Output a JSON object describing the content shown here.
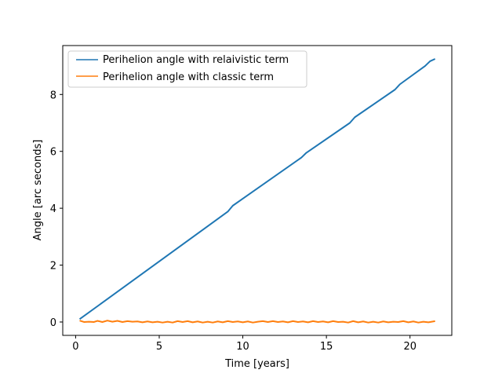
{
  "chart_data": {
    "type": "line",
    "title": "",
    "xlabel": "Time [years]",
    "ylabel": "Angle [arc seconds]",
    "xlim": [
      -0.77,
      22.5
    ],
    "ylim": [
      -0.47,
      9.72
    ],
    "xticks": [
      0,
      5,
      10,
      15,
      20
    ],
    "yticks": [
      0,
      2,
      4,
      6,
      8
    ],
    "grid": false,
    "legend_position": "upper-left",
    "series": [
      {
        "name": "Perihelion angle with relaivistic term",
        "color": "#1f77b4",
        "x": [
          0.24,
          9.1,
          9.4,
          13.5,
          13.8,
          16.4,
          16.7,
          19.1,
          19.4,
          20.9,
          21.2,
          21.5
        ],
        "y": [
          0.1,
          3.88,
          4.09,
          5.78,
          5.95,
          7.0,
          7.2,
          8.17,
          8.36,
          9.0,
          9.17,
          9.25
        ]
      },
      {
        "name": "Perihelion angle with classic term",
        "color": "#ff7f0e",
        "x": [
          0.24,
          0.5,
          0.8,
          1.1,
          1.3,
          1.6,
          1.9,
          2.2,
          2.5,
          2.8,
          3.1,
          3.4,
          3.7,
          4.0,
          4.3,
          4.6,
          4.9,
          5.2,
          5.5,
          5.8,
          6.1,
          6.4,
          6.7,
          7.0,
          7.3,
          7.6,
          7.9,
          8.2,
          8.5,
          8.8,
          9.1,
          9.4,
          9.7,
          10.0,
          10.3,
          10.6,
          10.9,
          11.2,
          11.5,
          11.8,
          12.1,
          12.4,
          12.7,
          13.0,
          13.3,
          13.6,
          13.9,
          14.2,
          14.5,
          14.8,
          15.1,
          15.4,
          15.7,
          16.0,
          16.3,
          16.6,
          16.9,
          17.2,
          17.5,
          17.8,
          18.1,
          18.4,
          18.7,
          19.0,
          19.3,
          19.6,
          19.9,
          20.2,
          20.5,
          20.8,
          21.1,
          21.5
        ],
        "y": [
          0.05,
          0.0,
          0.01,
          0.0,
          0.04,
          0.0,
          0.05,
          0.01,
          0.04,
          0.0,
          0.03,
          0.01,
          0.02,
          -0.01,
          0.02,
          -0.01,
          0.01,
          -0.02,
          0.01,
          -0.02,
          0.03,
          0.0,
          0.03,
          -0.01,
          0.02,
          -0.02,
          0.01,
          -0.02,
          0.02,
          -0.01,
          0.03,
          0.0,
          0.02,
          -0.01,
          0.02,
          -0.02,
          0.01,
          0.03,
          0.0,
          0.03,
          0.0,
          0.02,
          -0.01,
          0.03,
          0.0,
          0.02,
          -0.01,
          0.03,
          0.0,
          0.02,
          -0.01,
          0.03,
          0.0,
          0.01,
          -0.02,
          0.03,
          -0.01,
          0.02,
          -0.02,
          0.01,
          -0.02,
          0.02,
          -0.01,
          0.01,
          0.0,
          0.03,
          -0.01,
          0.02,
          -0.02,
          0.01,
          -0.01,
          0.03
        ]
      }
    ]
  }
}
